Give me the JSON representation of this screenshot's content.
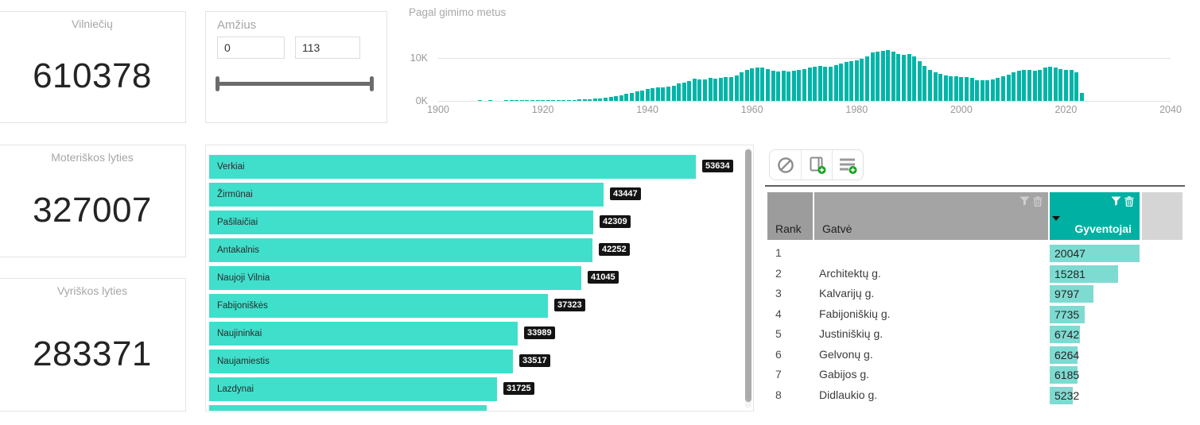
{
  "cards": {
    "vilnieciu": {
      "label": "Vilniečių",
      "value": "610378"
    },
    "moteriskos": {
      "label": "Moteriškos lyties",
      "value": "327007"
    },
    "vyriskos": {
      "label": "Vyriškos lyties",
      "value": "283371"
    }
  },
  "slider": {
    "label": "Amžius",
    "min_value": "0",
    "max_value": "113"
  },
  "colors": {
    "histogram_bar": "#00b5a8",
    "district_bar": "#40dfcc",
    "table_header_accent": "#00b0a2",
    "table_data_bar": "#7edbd2",
    "header_gray_dark": "#9c9c9c",
    "header_gray": "#a4a4a4",
    "header_gray_light": "#d5d5d5",
    "value_pill_bg": "#141414"
  },
  "chart_data": [
    {
      "type": "bar",
      "title": "Pagal gimimo metus",
      "xlabel": "",
      "ylabel": "",
      "xlim": [
        1900,
        2040
      ],
      "ylim": [
        0,
        12500
      ],
      "x_ticks": [
        "1900",
        "1920",
        "1940",
        "1960",
        "1980",
        "2000",
        "2020",
        "2040"
      ],
      "y_ticks": [
        "10K",
        "0K"
      ],
      "grid": true,
      "x_start_year": 1908,
      "values": [
        120,
        0,
        130,
        0,
        0,
        150,
        160,
        150,
        150,
        160,
        170,
        170,
        180,
        190,
        200,
        210,
        220,
        240,
        260,
        300,
        380,
        450,
        550,
        650,
        800,
        950,
        1100,
        1300,
        1600,
        1900,
        2200,
        2500,
        2800,
        3000,
        3200,
        3100,
        3300,
        3600,
        4000,
        4300,
        4600,
        5200,
        5100,
        5000,
        5300,
        5200,
        5400,
        5600,
        5500,
        6000,
        6700,
        7200,
        7600,
        7700,
        7800,
        7400,
        7000,
        6900,
        7000,
        6900,
        7000,
        7200,
        7500,
        7800,
        8000,
        8100,
        7900,
        8000,
        8300,
        8700,
        9000,
        9200,
        9400,
        9800,
        10400,
        11300,
        11500,
        11600,
        11900,
        11500,
        11000,
        10800,
        10900,
        10300,
        9300,
        8200,
        7300,
        6700,
        6300,
        6000,
        5800,
        5700,
        5600,
        5500,
        5300,
        4900,
        4800,
        4900,
        5000,
        5300,
        5700,
        6100,
        6600,
        7000,
        7300,
        7200,
        7100,
        7300,
        7700,
        7900,
        7800,
        7500,
        7300,
        7200,
        6600,
        1800
      ]
    },
    {
      "type": "bar",
      "orientation": "horizontal",
      "categories": [
        "Verkiai",
        "Žirmūnai",
        "Pašilaičiai",
        "Antakalnis",
        "Naujoji Vilnia",
        "Fabijoniškės",
        "Naujininkai",
        "Naujamiestis",
        "Lazdynai"
      ],
      "values": [
        53634,
        43447,
        42309,
        42252,
        41045,
        37323,
        33989,
        33517,
        31725
      ],
      "max_value": 53634,
      "has_partial_last_bar": true,
      "partial_last_bar_ratio": 0.57
    },
    {
      "type": "table",
      "columns": [
        "Rank",
        "Gatvė",
        "Gyventojai",
        ""
      ],
      "sorted_column": "Gyventojai",
      "data_bar_max": 20047,
      "rows": [
        {
          "rank": "1",
          "street": "",
          "value": 20047
        },
        {
          "rank": "2",
          "street": "Architektų g.",
          "value": 15281
        },
        {
          "rank": "3",
          "street": "Kalvarijų g.",
          "value": 9797
        },
        {
          "rank": "4",
          "street": "Fabijoniškių g.",
          "value": 7735
        },
        {
          "rank": "5",
          "street": "Justiniškių g.",
          "value": 6742
        },
        {
          "rank": "6",
          "street": "Gelvonų g.",
          "value": 6264
        },
        {
          "rank": "7",
          "street": "Gabijos g.",
          "value": 6185
        },
        {
          "rank": "8",
          "street": "Didlaukio g.",
          "value": 5232
        }
      ]
    }
  ]
}
